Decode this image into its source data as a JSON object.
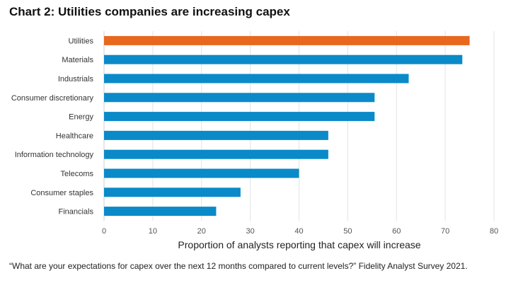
{
  "chart_data": {
    "type": "bar",
    "orientation": "horizontal",
    "title": "Chart 2: Utilities companies are increasing capex",
    "xlabel": "Proportion of analysts reporting that capex will increase",
    "ylabel": "",
    "categories": [
      "Utilities",
      "Materials",
      "Industrials",
      "Consumer discretionary",
      "Energy",
      "Healthcare",
      "Information technology",
      "Telecoms",
      "Consumer staples",
      "Financials"
    ],
    "values": [
      75,
      73.5,
      62.5,
      55.5,
      55.5,
      46,
      46,
      40,
      28,
      23
    ],
    "xlim": [
      0,
      80
    ],
    "xticks": [
      0,
      10,
      20,
      30,
      40,
      50,
      60,
      70,
      80
    ],
    "grid": "vertical",
    "bar_color": "#0a8ac8",
    "highlight": {
      "category": "Utilities",
      "color": "#e8681e"
    }
  },
  "footnote": "“What are your expectations for capex over the next 12 months compared to current levels?” Fidelity Analyst Survey 2021."
}
